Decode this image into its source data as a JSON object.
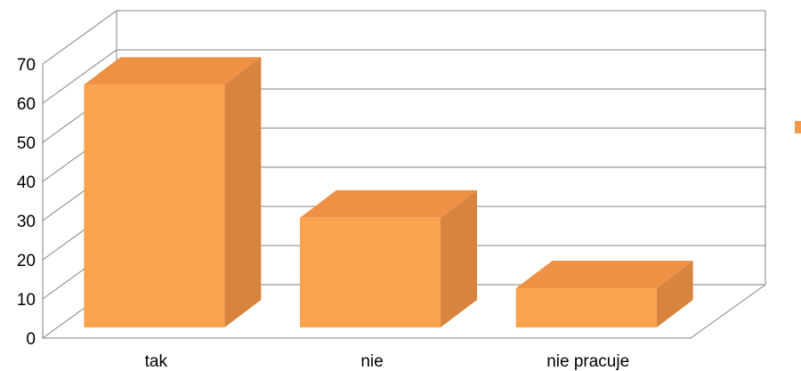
{
  "chart_data": {
    "type": "bar",
    "style": "3d-column",
    "categories": [
      "tak",
      "nie",
      "nie pracuje"
    ],
    "series": [
      {
        "values": [
          62,
          28,
          10
        ]
      }
    ],
    "ylim": [
      0,
      70
    ],
    "yticks": [
      0,
      10,
      20,
      30,
      40,
      50,
      60,
      70
    ],
    "grid": true,
    "legend": "right",
    "colors": {
      "front": "#FBA34E",
      "top": "#EE9145",
      "side": "#D8843E",
      "legend": "#F39A4B",
      "grid": "#808080"
    }
  }
}
